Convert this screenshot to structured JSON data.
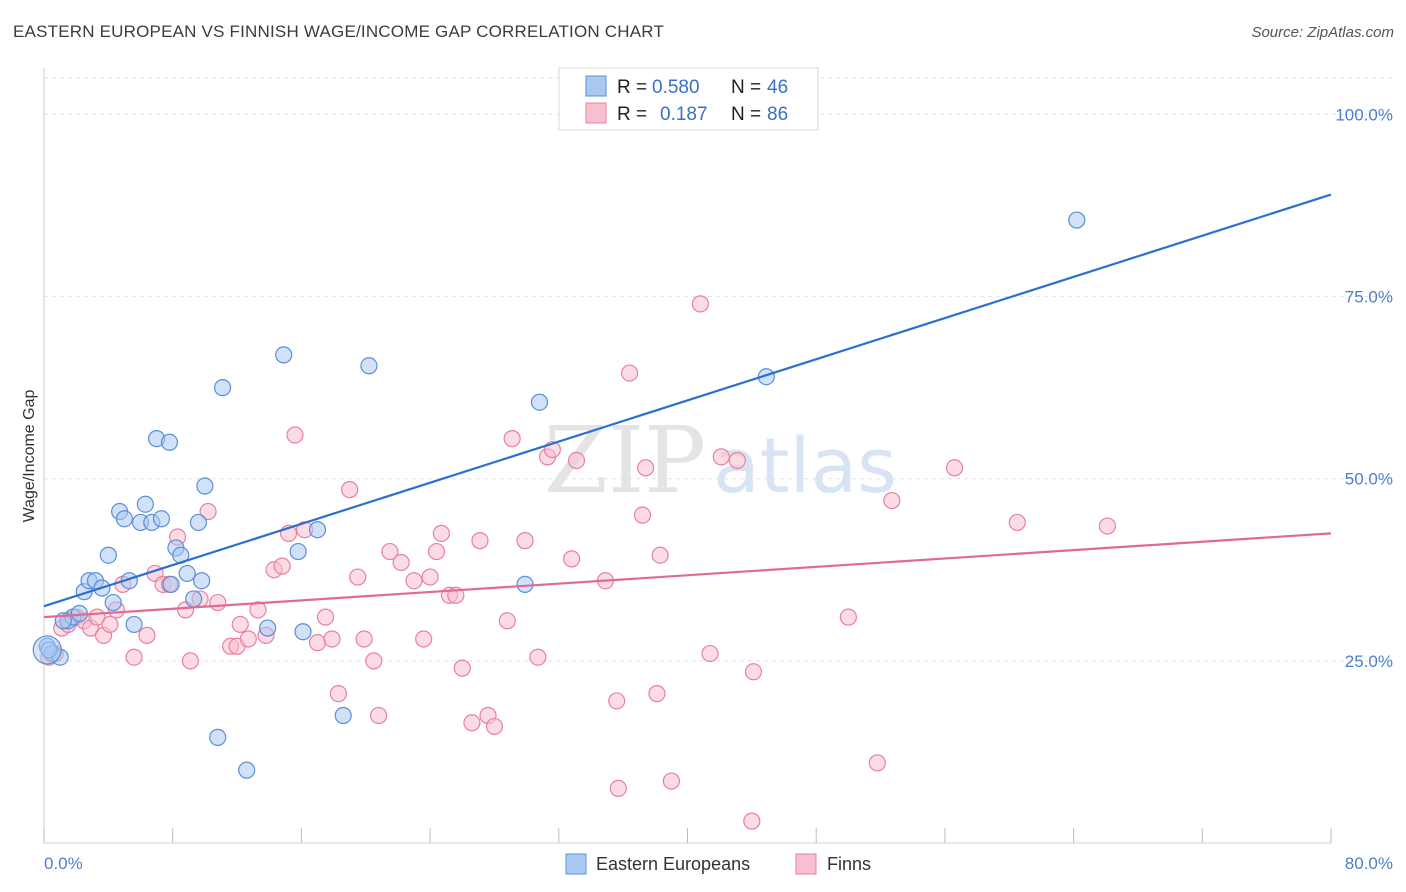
{
  "header": {
    "title": "EASTERN EUROPEAN VS FINNISH WAGE/INCOME GAP CORRELATION CHART",
    "source": "Source: ZipAtlas.com"
  },
  "watermark": {
    "zip": "ZIP",
    "atlas": "atlas"
  },
  "chart_data": {
    "type": "scatter",
    "title": "EASTERN EUROPEAN VS FINNISH WAGE/INCOME GAP CORRELATION CHART",
    "xlabel": "",
    "ylabel": "Wage/Income Gap",
    "xlim": [
      0,
      80
    ],
    "ylim": [
      0,
      105
    ],
    "x_tick_labels": [
      "0.0%",
      "80.0%"
    ],
    "y_ticks": [
      25,
      50,
      75,
      100
    ],
    "y_tick_labels": [
      "25.0%",
      "50.0%",
      "75.0%",
      "100.0%"
    ],
    "grid": true,
    "legend_position": "top-center",
    "colors": {
      "eastern_fill": "#a9c8f2",
      "eastern_stroke": "#5a8fd8",
      "eastern_line": "#2c6fd1",
      "finns_fill": "#f7bfd0",
      "finns_stroke": "#e8819f",
      "finns_line": "#e06b92",
      "accent_text": "#3a6fc4"
    },
    "stats": [
      {
        "r_label": "R =",
        "r_value": "0.580",
        "n_label": "N =",
        "n_value": "46"
      },
      {
        "r_label": "R =",
        "r_value": "0.187",
        "n_label": "N =",
        "n_value": "86"
      }
    ],
    "series": [
      {
        "name": "Eastern Europeans",
        "trend": [
          [
            0,
            32.5
          ],
          [
            80,
            89
          ]
        ],
        "points": [
          [
            0.2,
            27
          ],
          [
            0.5,
            26
          ],
          [
            1,
            25.5
          ],
          [
            1.5,
            30.5
          ],
          [
            1.8,
            31
          ],
          [
            2.2,
            31.5
          ],
          [
            2.5,
            34.5
          ],
          [
            2.8,
            36
          ],
          [
            3.2,
            36
          ],
          [
            3.6,
            35
          ],
          [
            4,
            39.5
          ],
          [
            4.3,
            33
          ],
          [
            4.7,
            45.5
          ],
          [
            5,
            44.5
          ],
          [
            5.3,
            36
          ],
          [
            5.6,
            30
          ],
          [
            6,
            44
          ],
          [
            6.3,
            46.5
          ],
          [
            6.7,
            44
          ],
          [
            7,
            55.5
          ],
          [
            7.3,
            44.5
          ],
          [
            7.8,
            55
          ],
          [
            7.9,
            35.5
          ],
          [
            8.2,
            40.5
          ],
          [
            8.5,
            39.5
          ],
          [
            8.9,
            37
          ],
          [
            9.3,
            33.5
          ],
          [
            9.6,
            44
          ],
          [
            9.8,
            36
          ],
          [
            10,
            49
          ],
          [
            10.8,
            14.5
          ],
          [
            11.1,
            62.5
          ],
          [
            12.6,
            10
          ],
          [
            13.9,
            29.5
          ],
          [
            14.9,
            67
          ],
          [
            15.8,
            40
          ],
          [
            16.1,
            29
          ],
          [
            17,
            43
          ],
          [
            18.6,
            17.5
          ],
          [
            20.2,
            65.5
          ],
          [
            29.9,
            35.5
          ],
          [
            30.8,
            60.5
          ],
          [
            44.9,
            64
          ],
          [
            64.2,
            85.5
          ],
          [
            0.3,
            26.5
          ],
          [
            1.2,
            30.5
          ]
        ]
      },
      {
        "name": "Finns",
        "trend": [
          [
            0,
            31
          ],
          [
            80,
            42.5
          ]
        ],
        "points": [
          [
            0.3,
            25.5
          ],
          [
            0.7,
            26
          ],
          [
            1.1,
            29.5
          ],
          [
            1.5,
            30
          ],
          [
            2,
            31
          ],
          [
            2.5,
            30.5
          ],
          [
            2.9,
            29.5
          ],
          [
            3.3,
            31
          ],
          [
            3.7,
            28.5
          ],
          [
            4.1,
            30
          ],
          [
            4.5,
            32
          ],
          [
            4.9,
            35.5
          ],
          [
            5.6,
            25.5
          ],
          [
            6.4,
            28.5
          ],
          [
            6.9,
            37
          ],
          [
            7.4,
            35.5
          ],
          [
            7.8,
            35.5
          ],
          [
            8.3,
            42
          ],
          [
            8.8,
            32
          ],
          [
            9.1,
            25
          ],
          [
            9.7,
            33.5
          ],
          [
            10.2,
            45.5
          ],
          [
            10.8,
            33
          ],
          [
            11.6,
            27
          ],
          [
            12,
            27
          ],
          [
            12.2,
            30
          ],
          [
            12.7,
            28
          ],
          [
            13.3,
            32
          ],
          [
            13.8,
            28.5
          ],
          [
            14.3,
            37.5
          ],
          [
            14.8,
            38
          ],
          [
            15.2,
            42.5
          ],
          [
            15.6,
            56
          ],
          [
            16.2,
            43
          ],
          [
            17,
            27.5
          ],
          [
            17.5,
            31
          ],
          [
            17.9,
            28
          ],
          [
            18.3,
            20.5
          ],
          [
            19,
            48.5
          ],
          [
            19.5,
            36.5
          ],
          [
            19.9,
            28
          ],
          [
            20.5,
            25
          ],
          [
            20.8,
            17.5
          ],
          [
            21.5,
            40
          ],
          [
            22.2,
            38.5
          ],
          [
            23,
            36
          ],
          [
            23.6,
            28
          ],
          [
            24,
            36.5
          ],
          [
            24.4,
            40
          ],
          [
            24.7,
            42.5
          ],
          [
            25.2,
            34
          ],
          [
            25.6,
            34
          ],
          [
            26,
            24
          ],
          [
            26.6,
            16.5
          ],
          [
            27.1,
            41.5
          ],
          [
            27.6,
            17.5
          ],
          [
            28,
            16
          ],
          [
            28.8,
            30.5
          ],
          [
            29.1,
            55.5
          ],
          [
            29.9,
            41.5
          ],
          [
            30.7,
            25.5
          ],
          [
            31.3,
            53
          ],
          [
            31.6,
            54
          ],
          [
            32.8,
            39
          ],
          [
            33.1,
            52.5
          ],
          [
            34.9,
            36
          ],
          [
            35.6,
            19.5
          ],
          [
            35.7,
            7.5
          ],
          [
            36.4,
            64.5
          ],
          [
            37.2,
            45
          ],
          [
            37.4,
            51.5
          ],
          [
            38.1,
            20.5
          ],
          [
            38.3,
            39.5
          ],
          [
            39,
            8.5
          ],
          [
            40.8,
            74
          ],
          [
            41.4,
            26
          ],
          [
            42.1,
            53
          ],
          [
            43.1,
            52.5
          ],
          [
            44.1,
            23.5
          ],
          [
            44,
            3
          ],
          [
            50,
            31
          ],
          [
            51.8,
            11
          ],
          [
            52.7,
            47
          ],
          [
            56.6,
            51.5
          ],
          [
            60.5,
            44
          ],
          [
            66.1,
            43.5
          ]
        ]
      }
    ]
  },
  "legend": {
    "eastern_label": "Eastern Europeans",
    "finns_label": "Finns"
  }
}
